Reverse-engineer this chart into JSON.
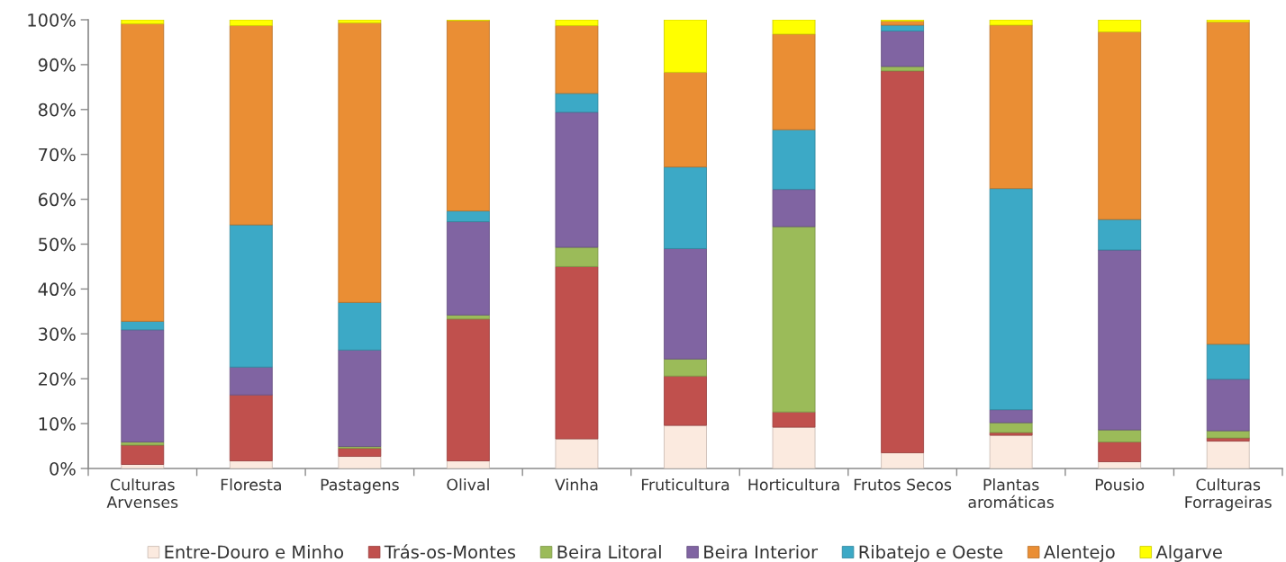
{
  "chart_data": {
    "type": "bar",
    "stacked": true,
    "categories": [
      "Culturas\nArvenses",
      "Floresta",
      "Pastagens",
      "Olival",
      "Vinha",
      "Fruticultura",
      "Horticultura",
      "Frutos Secos",
      "Plantas\naromáticas",
      "Pousio",
      "Culturas\nForrageiras"
    ],
    "series": [
      {
        "name": "Entre-Douro e Minho",
        "color": "#fbeadf",
        "values": [
          0.9,
          1.7,
          2.7,
          1.7,
          6.6,
          9.6,
          9.2,
          3.5,
          7.4,
          1.5,
          6.1
        ]
      },
      {
        "name": "Trás-os-Montes",
        "color": "#c0504d",
        "values": [
          4.3,
          14.7,
          1.8,
          31.6,
          38.4,
          11.0,
          3.4,
          85.1,
          0.6,
          4.4,
          0.7
        ]
      },
      {
        "name": "Beira Litoral",
        "color": "#9bbb59",
        "values": [
          0.7,
          0,
          0.4,
          0.9,
          4.3,
          3.8,
          41.3,
          1.0,
          2.2,
          2.7,
          1.6
        ]
      },
      {
        "name": "Beira Interior",
        "color": "#8064a2",
        "values": [
          25.0,
          6.2,
          21.5,
          20.8,
          30.1,
          24.6,
          8.3,
          7.9,
          2.9,
          40.1,
          11.5
        ]
      },
      {
        "name": "Ribatejo e Oeste",
        "color": "#3ca9c6",
        "values": [
          1.9,
          31.7,
          10.6,
          2.4,
          4.2,
          18.2,
          13.3,
          1.3,
          49.3,
          6.8,
          7.8
        ]
      },
      {
        "name": "Alentejo",
        "color": "#ea8e34",
        "values": [
          66.3,
          44.4,
          62.3,
          42.4,
          15.1,
          21.1,
          21.3,
          0.9,
          36.4,
          41.8,
          71.8
        ]
      },
      {
        "name": "Algarve",
        "color": "#ffff00",
        "values": [
          0.9,
          1.3,
          0.7,
          0.2,
          1.3,
          11.7,
          3.2,
          0.3,
          1.2,
          2.7,
          0.5
        ]
      }
    ],
    "ylim": [
      0,
      100
    ],
    "yticks": [
      {
        "value": 0,
        "label": "0%"
      },
      {
        "value": 10,
        "label": "10%"
      },
      {
        "value": 20,
        "label": "20%"
      },
      {
        "value": 30,
        "label": "30%"
      },
      {
        "value": 40,
        "label": "40%"
      },
      {
        "value": 50,
        "label": "50%"
      },
      {
        "value": 60,
        "label": "60%"
      },
      {
        "value": 70,
        "label": "70%"
      },
      {
        "value": 80,
        "label": "80%"
      },
      {
        "value": 90,
        "label": "90%"
      },
      {
        "value": 100,
        "label": "100%"
      }
    ],
    "grid": false,
    "legend": "bottom"
  }
}
